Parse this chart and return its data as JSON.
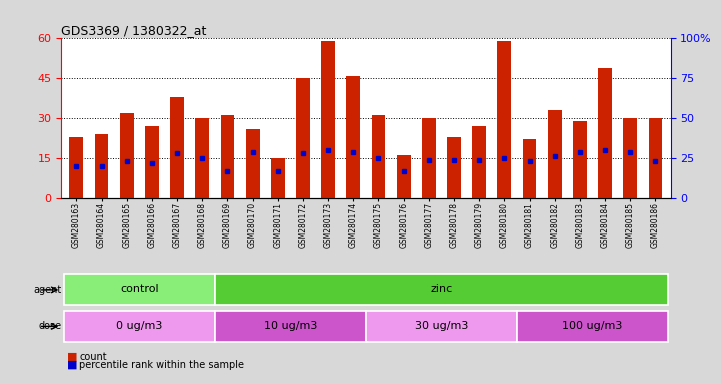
{
  "title": "GDS3369 / 1380322_at",
  "samples": [
    "GSM280163",
    "GSM280164",
    "GSM280165",
    "GSM280166",
    "GSM280167",
    "GSM280168",
    "GSM280169",
    "GSM280170",
    "GSM280171",
    "GSM280172",
    "GSM280173",
    "GSM280174",
    "GSM280175",
    "GSM280176",
    "GSM280177",
    "GSM280178",
    "GSM280179",
    "GSM280180",
    "GSM280181",
    "GSM280182",
    "GSM280183",
    "GSM280184",
    "GSM280185",
    "GSM280186"
  ],
  "counts": [
    23,
    24,
    32,
    27,
    38,
    30,
    31,
    26,
    15,
    45,
    59,
    46,
    31,
    16,
    30,
    23,
    27,
    59,
    22,
    33,
    29,
    49,
    30,
    30
  ],
  "percentile_ranks": [
    20,
    20,
    23,
    22,
    28,
    25,
    17,
    29,
    17,
    28,
    30,
    29,
    25,
    17,
    24,
    24,
    24,
    25,
    23,
    26,
    29,
    30,
    29,
    23
  ],
  "bar_color": "#cc2200",
  "dot_color": "#0000cc",
  "ylim_left": [
    0,
    60
  ],
  "ylim_right": [
    0,
    100
  ],
  "yticks_left": [
    0,
    15,
    30,
    45,
    60
  ],
  "yticks_right": [
    0,
    25,
    50,
    75,
    100
  ],
  "agent_groups": [
    {
      "label": "control",
      "start": 0,
      "end": 6,
      "color": "#88ee77"
    },
    {
      "label": "zinc",
      "start": 6,
      "end": 24,
      "color": "#55cc33"
    }
  ],
  "dose_groups": [
    {
      "label": "0 ug/m3",
      "start": 0,
      "end": 6,
      "color": "#ee99ee"
    },
    {
      "label": "10 ug/m3",
      "start": 6,
      "end": 12,
      "color": "#cc55cc"
    },
    {
      "label": "30 ug/m3",
      "start": 12,
      "end": 18,
      "color": "#ee99ee"
    },
    {
      "label": "100 ug/m3",
      "start": 18,
      "end": 24,
      "color": "#cc55cc"
    }
  ],
  "legend_count_color": "#cc2200",
  "legend_dot_color": "#0000cc",
  "background_color": "#d8d8d8",
  "plot_bg_color": "#ffffff",
  "bar_width": 0.55
}
